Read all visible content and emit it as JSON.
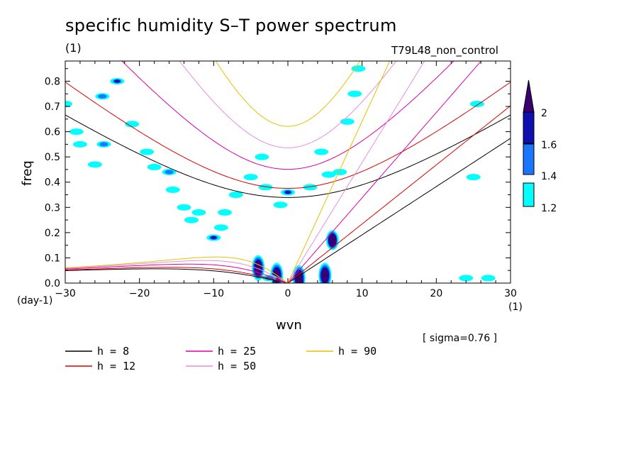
{
  "title": "specific humidity S–T power spectrum",
  "subtitle_left": "(1)",
  "subtitle_right": "T79L48_non_control",
  "xlabel": "wvn",
  "ylabel": "freq",
  "x_unit": "(1)",
  "y_unit": "(day-1)",
  "sigma_note": "[ sigma=0.76 ]",
  "chart_data": {
    "type": "heatmap",
    "title": "specific humidity S–T power spectrum",
    "xlabel": "wvn",
    "ylabel": "freq",
    "xlim": [
      -30,
      30
    ],
    "ylim": [
      0,
      0.88
    ],
    "x_ticks": [
      -30,
      -20,
      -10,
      0,
      10,
      20,
      30
    ],
    "x_tick_labels": [
      "−30",
      "−20",
      "−10",
      "0",
      "10",
      "20",
      "30"
    ],
    "y_ticks": [
      0.0,
      0.1,
      0.2,
      0.3,
      0.4,
      0.5,
      0.6,
      0.7,
      0.8
    ],
    "y_tick_labels": [
      "0.0",
      "0.1",
      "0.2",
      "0.3",
      "0.4",
      "0.5",
      "0.6",
      "0.7",
      "0.8"
    ],
    "colorbar": {
      "levels": [
        1.2,
        1.4,
        1.6,
        2
      ],
      "labels": [
        "1.2",
        "1.4",
        "1.6",
        "2"
      ],
      "colors": [
        "#00ffff",
        "#1a75ff",
        "#1010b0",
        "#3a0070"
      ]
    },
    "blobs": [
      {
        "x": -30,
        "y": 0.71,
        "level": 1
      },
      {
        "x": -28.5,
        "y": 0.6,
        "level": 1
      },
      {
        "x": -28,
        "y": 0.55,
        "level": 1
      },
      {
        "x": -26,
        "y": 0.47,
        "level": 1
      },
      {
        "x": -25,
        "y": 0.74,
        "level": 2
      },
      {
        "x": -24.8,
        "y": 0.55,
        "level": 2
      },
      {
        "x": -23,
        "y": 0.8,
        "level": 3
      },
      {
        "x": -21,
        "y": 0.63,
        "level": 1
      },
      {
        "x": -19,
        "y": 0.52,
        "level": 1
      },
      {
        "x": -18,
        "y": 0.46,
        "level": 1
      },
      {
        "x": -16,
        "y": 0.44,
        "level": 2
      },
      {
        "x": -15.5,
        "y": 0.37,
        "level": 1
      },
      {
        "x": -14,
        "y": 0.3,
        "level": 1
      },
      {
        "x": -13,
        "y": 0.25,
        "level": 1
      },
      {
        "x": -12,
        "y": 0.28,
        "level": 1
      },
      {
        "x": -10,
        "y": 0.18,
        "level": 3
      },
      {
        "x": -9,
        "y": 0.22,
        "level": 1
      },
      {
        "x": -8.5,
        "y": 0.28,
        "level": 1
      },
      {
        "x": -7,
        "y": 0.35,
        "level": 1
      },
      {
        "x": -5,
        "y": 0.42,
        "level": 1
      },
      {
        "x": -3.5,
        "y": 0.5,
        "level": 1
      },
      {
        "x": -3,
        "y": 0.38,
        "level": 1
      },
      {
        "x": 0,
        "y": 0.36,
        "level": 3
      },
      {
        "x": -1,
        "y": 0.31,
        "level": 1
      },
      {
        "x": 3,
        "y": 0.38,
        "level": 1
      },
      {
        "x": 4.5,
        "y": 0.52,
        "level": 1
      },
      {
        "x": 5.5,
        "y": 0.43,
        "level": 1
      },
      {
        "x": 7,
        "y": 0.44,
        "level": 1
      },
      {
        "x": 8,
        "y": 0.64,
        "level": 1
      },
      {
        "x": 9,
        "y": 0.75,
        "level": 1
      },
      {
        "x": 6,
        "y": 0.17,
        "level": 4
      },
      {
        "x": -4,
        "y": 0.06,
        "level": 4
      },
      {
        "x": -1.5,
        "y": 0.03,
        "level": 4
      },
      {
        "x": 1.5,
        "y": 0.02,
        "level": 4
      },
      {
        "x": 5,
        "y": 0.03,
        "level": 4
      },
      {
        "x": -2.5,
        "y": 0.02,
        "level": 2
      },
      {
        "x": 24,
        "y": 0.02,
        "level": 1
      },
      {
        "x": 27,
        "y": 0.02,
        "level": 1
      },
      {
        "x": 25.5,
        "y": 0.71,
        "level": 1
      },
      {
        "x": 25,
        "y": 0.42,
        "level": 1
      },
      {
        "x": 9.5,
        "y": 0.85,
        "level": 1
      }
    ],
    "dispersion_curves": [
      {
        "name": "h =  8",
        "h": 8,
        "color": "#000000"
      },
      {
        "name": "h = 12",
        "h": 12,
        "color": "#dd0000"
      },
      {
        "name": "h = 25",
        "h": 25,
        "color": "#dd00aa"
      },
      {
        "name": "h = 50",
        "h": 50,
        "color": "#e48ee4"
      },
      {
        "name": "h = 90",
        "h": 90,
        "color": "#e8c000"
      }
    ]
  }
}
